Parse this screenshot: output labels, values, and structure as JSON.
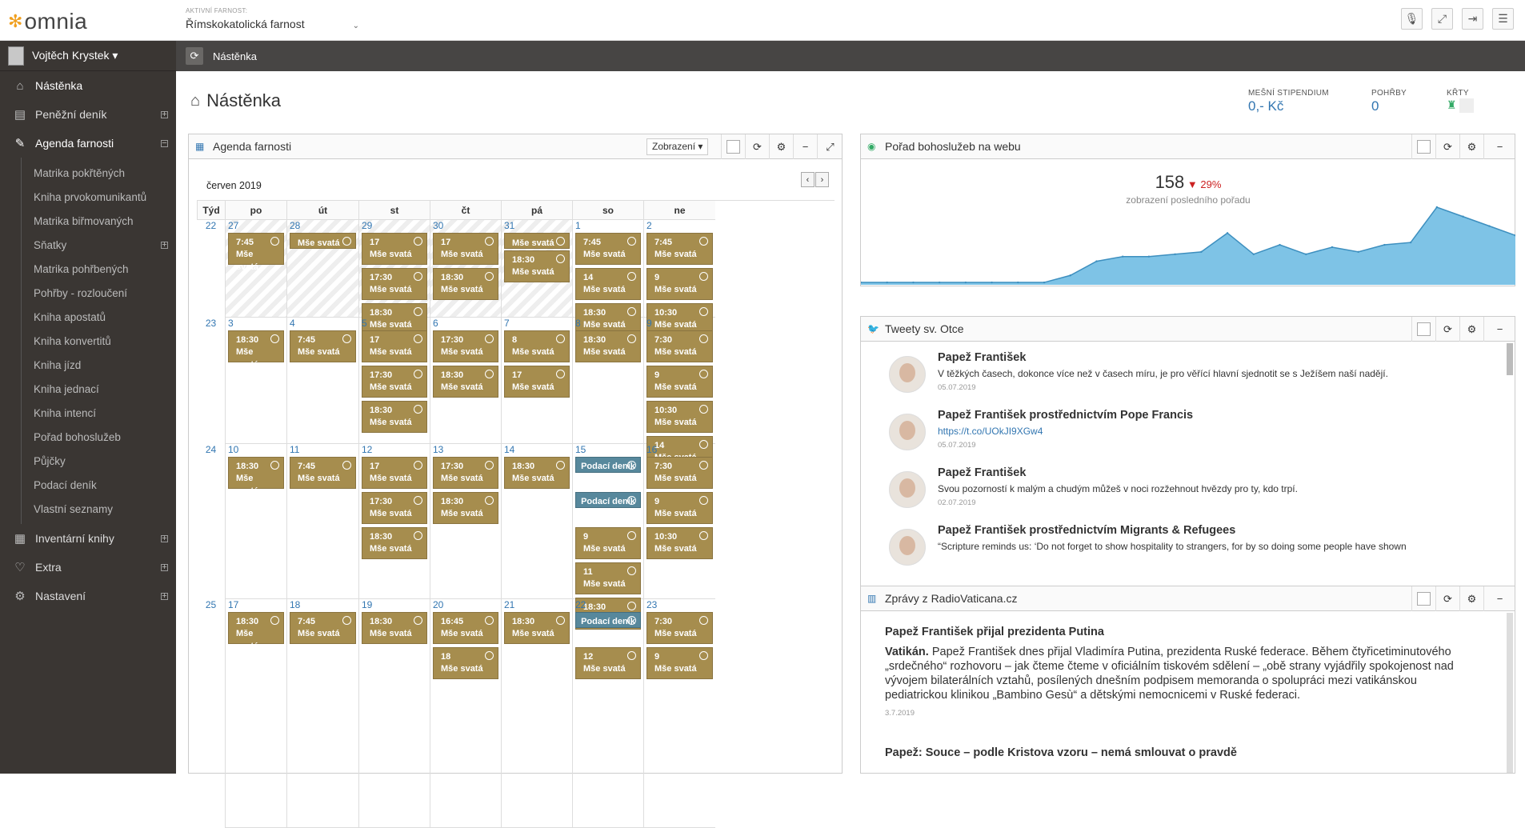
{
  "app": {
    "logo_text": "omnia"
  },
  "parish": {
    "label": "AKTIVNÍ FARNOST:",
    "value": "Římskokatolická farnost"
  },
  "user": {
    "name": "Vojtěch Krystek ▾"
  },
  "nav": {
    "dashboard": "Nástěnka",
    "cashbook": "Peněžní deník",
    "agenda": "Agenda farnosti",
    "inventory": "Inventární knihy",
    "extra": "Extra",
    "settings": "Nastavení"
  },
  "submenu": [
    "Matrika pokřtěných",
    "Kniha prvokomunikantů",
    "Matrika biřmovaných",
    "Sňatky",
    "Matrika pohřbených",
    "Pohřby - rozloučení",
    "Kniha apostatů",
    "Kniha konvertitů",
    "Kniha jízd",
    "Kniha jednací",
    "Kniha intencí",
    "Pořad bohoslužeb",
    "Půjčky",
    "Podací deník",
    "Vlastní seznamy"
  ],
  "breadcrumb": "Nástěnka",
  "page_title": "Nástěnka",
  "stats": {
    "stipend_label": "MEŠNÍ STIPENDIUM",
    "stipend_value": "0,- Kč",
    "funerals_label": "POHŘBY",
    "funerals_value": "0",
    "baptisms_label": "KŘTY"
  },
  "agenda": {
    "title": "Agenda farnosti",
    "display_btn": "Zobrazení ▾",
    "month": "červen 2019",
    "week_col": "Týd",
    "days": [
      "po",
      "út",
      "st",
      "čt",
      "pá",
      "so",
      "ne"
    ],
    "weeks": [
      {
        "num": "22",
        "days": [
          {
            "d": "27",
            "hatch": true,
            "events": [
              {
                "t": "7:45",
                "n": "Mše svatá"
              }
            ]
          },
          {
            "d": "28",
            "hatch": true,
            "events": [
              {
                "t": "",
                "n": "Mše svatá"
              }
            ]
          },
          {
            "d": "29",
            "hatch": true,
            "events": [
              {
                "t": "17",
                "n": "Mše svatá"
              },
              {
                "t": "17:30",
                "n": "Mše svatá"
              },
              {
                "t": "18:30",
                "n": "Mše svatá"
              }
            ]
          },
          {
            "d": "30",
            "hatch": true,
            "events": [
              {
                "t": "17",
                "n": "Mše svatá"
              },
              {
                "t": "18:30",
                "n": "Mše svatá"
              }
            ]
          },
          {
            "d": "31",
            "hatch": true,
            "events": [
              {
                "t": "",
                "n": "Mše svatá"
              },
              {
                "t": "18:30",
                "n": "Mše svatá"
              }
            ]
          },
          {
            "d": "1",
            "events": [
              {
                "t": "7:45",
                "n": "Mše svatá"
              },
              {
                "t": "14",
                "n": "Mše svatá"
              },
              {
                "t": "18:30",
                "n": "Mše svatá"
              }
            ]
          },
          {
            "d": "2",
            "events": [
              {
                "t": "7:45",
                "n": "Mše svatá"
              },
              {
                "t": "9",
                "n": "Mše svatá"
              },
              {
                "t": "10:30",
                "n": "Mše svatá"
              }
            ]
          }
        ]
      },
      {
        "num": "23",
        "days": [
          {
            "d": "3",
            "events": [
              {
                "t": "18:30",
                "n": "Mše svatá"
              }
            ]
          },
          {
            "d": "4",
            "events": [
              {
                "t": "7:45",
                "n": "Mše svatá"
              }
            ]
          },
          {
            "d": "5",
            "events": [
              {
                "t": "17",
                "n": "Mše svatá"
              },
              {
                "t": "17:30",
                "n": "Mše svatá"
              },
              {
                "t": "18:30",
                "n": "Mše svatá"
              }
            ]
          },
          {
            "d": "6",
            "events": [
              {
                "t": "17:30",
                "n": "Mše svatá"
              },
              {
                "t": "18:30",
                "n": "Mše svatá"
              }
            ]
          },
          {
            "d": "7",
            "events": [
              {
                "t": "8",
                "n": "Mše svatá"
              },
              {
                "t": "17",
                "n": "Mše svatá"
              }
            ]
          },
          {
            "d": "8",
            "events": [
              {
                "t": "18:30",
                "n": "Mše svatá"
              }
            ]
          },
          {
            "d": "9",
            "events": [
              {
                "t": "7:30",
                "n": "Mše svatá"
              },
              {
                "t": "9",
                "n": "Mše svatá"
              },
              {
                "t": "10:30",
                "n": "Mše svatá"
              },
              {
                "t": "14",
                "n": "Mše svatá"
              }
            ]
          }
        ]
      },
      {
        "num": "24",
        "days": [
          {
            "d": "10",
            "events": [
              {
                "t": "18:30",
                "n": "Mše svatá"
              }
            ]
          },
          {
            "d": "11",
            "events": [
              {
                "t": "7:45",
                "n": "Mše svatá"
              }
            ]
          },
          {
            "d": "12",
            "events": [
              {
                "t": "17",
                "n": "Mše svatá"
              },
              {
                "t": "17:30",
                "n": "Mše svatá"
              },
              {
                "t": "18:30",
                "n": "Mše svatá"
              }
            ]
          },
          {
            "d": "13",
            "events": [
              {
                "t": "17:30",
                "n": "Mše svatá"
              },
              {
                "t": "18:30",
                "n": "Mše svatá"
              }
            ]
          },
          {
            "d": "14",
            "events": [
              {
                "t": "18:30",
                "n": "Mše svatá"
              }
            ]
          },
          {
            "d": "15",
            "events": [
              {
                "blue": true,
                "n": "Podací deník"
              },
              {
                "blue": true,
                "n": "Podací deník"
              },
              {
                "t": "9",
                "n": "Mše svatá"
              },
              {
                "t": "11",
                "n": "Mše svatá"
              },
              {
                "t": "18:30",
                "n": "Mše svatá"
              }
            ]
          },
          {
            "d": "16",
            "events": [
              {
                "t": "7:30",
                "n": "Mše svatá"
              },
              {
                "t": "9",
                "n": "Mše svatá"
              },
              {
                "t": "10:30",
                "n": "Mše svatá"
              }
            ]
          }
        ]
      },
      {
        "num": "25",
        "days": [
          {
            "d": "17",
            "events": [
              {
                "t": "18:30",
                "n": "Mše svatá"
              }
            ]
          },
          {
            "d": "18",
            "events": [
              {
                "t": "7:45",
                "n": "Mše svatá"
              }
            ]
          },
          {
            "d": "19",
            "events": [
              {
                "t": "18:30",
                "n": "Mše svatá"
              }
            ]
          },
          {
            "d": "20",
            "events": [
              {
                "t": "16:45",
                "n": "Mše svatá"
              },
              {
                "t": "18",
                "n": "Mše svatá"
              }
            ]
          },
          {
            "d": "21",
            "events": [
              {
                "t": "18:30",
                "n": "Mše svatá"
              }
            ]
          },
          {
            "d": "22",
            "events": [
              {
                "blue": true,
                "n": "Podací deník"
              },
              {
                "t": "12",
                "n": "Mše svatá"
              }
            ]
          },
          {
            "d": "23",
            "events": [
              {
                "t": "7:30",
                "n": "Mše svatá"
              },
              {
                "t": "9",
                "n": "Mše svatá"
              }
            ]
          }
        ]
      }
    ]
  },
  "web": {
    "title": "Pořad bohoslužeb na webu",
    "count": "158",
    "change": "29%",
    "subtitle": "zobrazení posledního pořadu"
  },
  "chart_data": {
    "type": "area",
    "values": [
      1,
      1,
      1,
      1,
      1,
      1,
      1,
      1,
      4,
      10,
      12,
      12,
      13,
      14,
      22,
      13,
      17,
      13,
      16,
      14,
      17,
      18,
      33,
      29,
      25,
      21
    ]
  },
  "tweets": {
    "title": "Tweety sv. Otce",
    "items": [
      {
        "name": "Papež František",
        "text": "V těžkých časech, dokonce více než v časech míru, je pro věřící hlavní sjednotit se s Ježíšem naší nadějí.",
        "date": "05.07.2019",
        "link": false
      },
      {
        "name": "Papež František prostřednictvím Pope Francis",
        "text": "https://t.co/UOkJI9XGw4",
        "date": "05.07.2019",
        "link": true
      },
      {
        "name": "Papež František",
        "text": "Svou pozorností k malým a chudým můžeš v noci rozžehnout hvězdy pro ty, kdo trpí.",
        "date": "02.07.2019",
        "link": false
      },
      {
        "name": "Papež František prostřednictvím Migrants & Refugees",
        "text": "“Scripture reminds us: ‘Do not forget to show hospitality to strangers, for by so doing some people have shown",
        "date": "",
        "link": false
      }
    ]
  },
  "news": {
    "title": "Zprávy z RadioVaticana.cz",
    "items": [
      {
        "headline": "Papež František přijal prezidenta Putina",
        "lead": "Vatikán.",
        "body": " Papež František dnes přijal Vladimíra Putina, prezidenta Ruské federace. Během čtyřicetiminutového „srdečného“ rozhovoru – jak čteme čteme v oficiálním tiskovém sdělení – „obě strany vyjádřily spokojenost nad vývojem bilaterálních vztahů, posílených dnešním podpisem memoranda o spolupráci mezi vatikánskou pediatrickou klinikou „Bambino Gesù“ a dětskými nemocnicemi v Ruské federaci.",
        "date": "3.7.2019"
      },
      {
        "headline": "Papež: Souce – podle Kristova vzoru – nemá smlouvat o pravdě",
        "lead": "",
        "body": "",
        "date": ""
      }
    ]
  },
  "colors": {
    "event": "#a68d4e",
    "event_blue": "#57889c",
    "sidebar": "#3a3633",
    "link": "#3276b1",
    "chart_fill": "#7ec3e6"
  }
}
